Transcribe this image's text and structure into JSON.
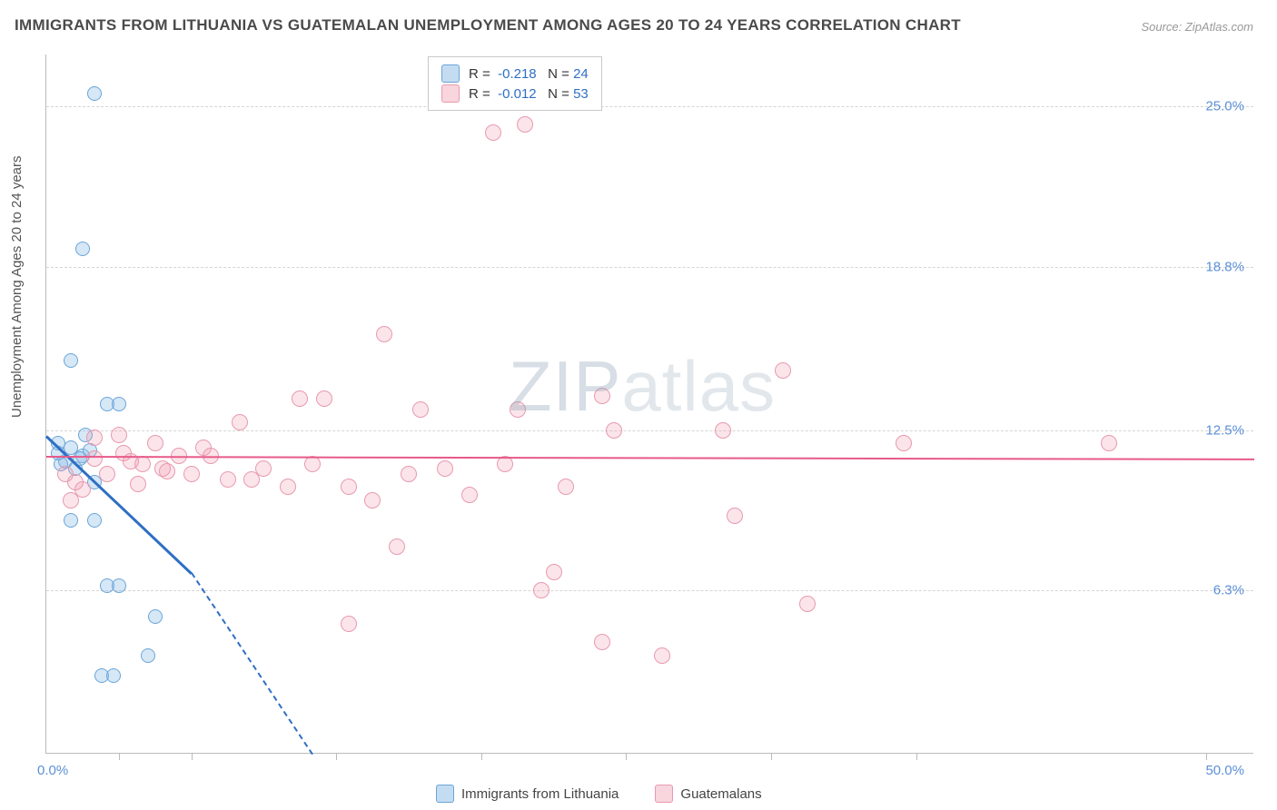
{
  "title": "IMMIGRANTS FROM LITHUANIA VS GUATEMALAN UNEMPLOYMENT AMONG AGES 20 TO 24 YEARS CORRELATION CHART",
  "source": "Source: ZipAtlas.com",
  "ylabel": "Unemployment Among Ages 20 to 24 years",
  "watermark_a": "ZIP",
  "watermark_b": "atlas",
  "chart": {
    "type": "scatter",
    "xlim": [
      0,
      50
    ],
    "ylim": [
      0,
      27
    ],
    "xticks_pct": [
      6,
      12,
      24,
      36,
      48,
      60,
      72,
      96
    ],
    "xorigin": "0.0%",
    "xmax": "50.0%",
    "grid_dash_color": "#d5d5d5",
    "background_color": "#ffffff",
    "yticks": [
      {
        "v": 6.3,
        "label": "6.3%"
      },
      {
        "v": 12.5,
        "label": "12.5%"
      },
      {
        "v": 18.8,
        "label": "18.8%"
      },
      {
        "v": 25.0,
        "label": "25.0%"
      }
    ],
    "series": [
      {
        "name": "Immigrants from Lithuania",
        "color_fill": "rgba(138,186,230,0.35)",
        "color_stroke": "#6aa5d8",
        "marker_size": 16,
        "R": "-0.218",
        "N": "24",
        "points": [
          [
            2.0,
            25.5
          ],
          [
            1.5,
            19.5
          ],
          [
            1.0,
            15.2
          ],
          [
            2.5,
            13.5
          ],
          [
            3.0,
            13.5
          ],
          [
            0.5,
            12.0
          ],
          [
            1.0,
            11.8
          ],
          [
            1.5,
            11.5
          ],
          [
            1.8,
            11.7
          ],
          [
            0.8,
            11.3
          ],
          [
            1.2,
            11.0
          ],
          [
            2.0,
            10.5
          ],
          [
            0.6,
            11.2
          ],
          [
            1.0,
            9.0
          ],
          [
            2.0,
            9.0
          ],
          [
            2.5,
            6.5
          ],
          [
            3.0,
            6.5
          ],
          [
            4.5,
            5.3
          ],
          [
            2.3,
            3.0
          ],
          [
            2.8,
            3.0
          ],
          [
            4.2,
            3.8
          ],
          [
            0.5,
            11.6
          ],
          [
            1.4,
            11.4
          ],
          [
            1.6,
            12.3
          ]
        ],
        "trend": {
          "x1": 0,
          "y1": 12.3,
          "x2": 6,
          "y2": 7.0,
          "x3": 11,
          "y3": 0
        }
      },
      {
        "name": "Guatemalans",
        "color_fill": "rgba(240,150,170,0.25)",
        "color_stroke": "#e89ab0",
        "marker_size": 18,
        "R": "-0.012",
        "N": "53",
        "points": [
          [
            18.5,
            24.0
          ],
          [
            19.8,
            24.3
          ],
          [
            14.0,
            16.2
          ],
          [
            30.5,
            14.8
          ],
          [
            23.0,
            13.8
          ],
          [
            10.5,
            13.7
          ],
          [
            11.5,
            13.7
          ],
          [
            8.0,
            12.8
          ],
          [
            15.5,
            13.3
          ],
          [
            19.5,
            13.3
          ],
          [
            44.0,
            12.0
          ],
          [
            35.5,
            12.0
          ],
          [
            28.0,
            12.5
          ],
          [
            23.5,
            12.5
          ],
          [
            2.0,
            12.2
          ],
          [
            3.0,
            12.3
          ],
          [
            4.5,
            12.0
          ],
          [
            5.5,
            11.5
          ],
          [
            6.5,
            11.8
          ],
          [
            3.5,
            11.3
          ],
          [
            6.0,
            10.8
          ],
          [
            7.5,
            10.6
          ],
          [
            8.5,
            10.6
          ],
          [
            10.0,
            10.3
          ],
          [
            12.5,
            10.3
          ],
          [
            13.5,
            9.8
          ],
          [
            15.0,
            10.8
          ],
          [
            17.5,
            10.0
          ],
          [
            21.5,
            10.3
          ],
          [
            28.5,
            9.2
          ],
          [
            14.5,
            8.0
          ],
          [
            21.0,
            7.0
          ],
          [
            12.5,
            5.0
          ],
          [
            20.5,
            6.3
          ],
          [
            23.0,
            4.3
          ],
          [
            25.5,
            3.8
          ],
          [
            31.5,
            5.8
          ],
          [
            0.8,
            10.8
          ],
          [
            1.2,
            10.5
          ],
          [
            1.5,
            10.2
          ],
          [
            2.5,
            10.8
          ],
          [
            3.8,
            10.4
          ],
          [
            4.8,
            11.0
          ],
          [
            1.0,
            9.8
          ],
          [
            2.0,
            11.4
          ],
          [
            3.2,
            11.6
          ],
          [
            4.0,
            11.2
          ],
          [
            5.0,
            10.9
          ],
          [
            9.0,
            11.0
          ],
          [
            11.0,
            11.2
          ],
          [
            16.5,
            11.0
          ],
          [
            19.0,
            11.2
          ],
          [
            6.8,
            11.5
          ]
        ],
        "trend": {
          "x1": 0,
          "y1": 11.5,
          "x2": 50,
          "y2": 11.4
        }
      }
    ]
  },
  "legend_bottom": [
    {
      "label": "Immigrants from Lithuania",
      "swatch": "blue"
    },
    {
      "label": "Guatemalans",
      "swatch": "pink"
    }
  ]
}
